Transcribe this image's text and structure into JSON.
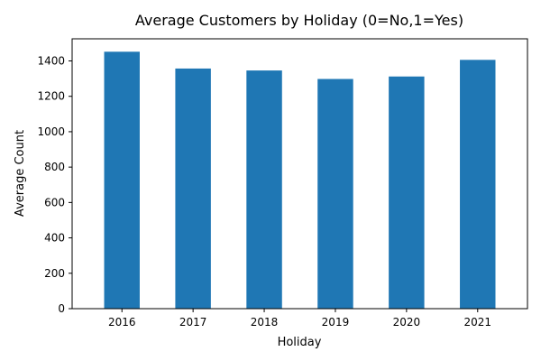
{
  "chart_data": {
    "type": "bar",
    "title": "Average Customers by Holiday (0=No,1=Yes)",
    "xlabel": "Holiday",
    "ylabel": "Average Count",
    "categories": [
      "2016",
      "2017",
      "2018",
      "2019",
      "2020",
      "2021"
    ],
    "values": [
      1452,
      1357,
      1346,
      1298,
      1312,
      1406
    ],
    "ylim": [
      0,
      1525
    ],
    "yticks": [
      0,
      200,
      400,
      600,
      800,
      1000,
      1200,
      1400
    ],
    "bar_color": "#1f77b4",
    "grid": false,
    "legend": "none"
  }
}
